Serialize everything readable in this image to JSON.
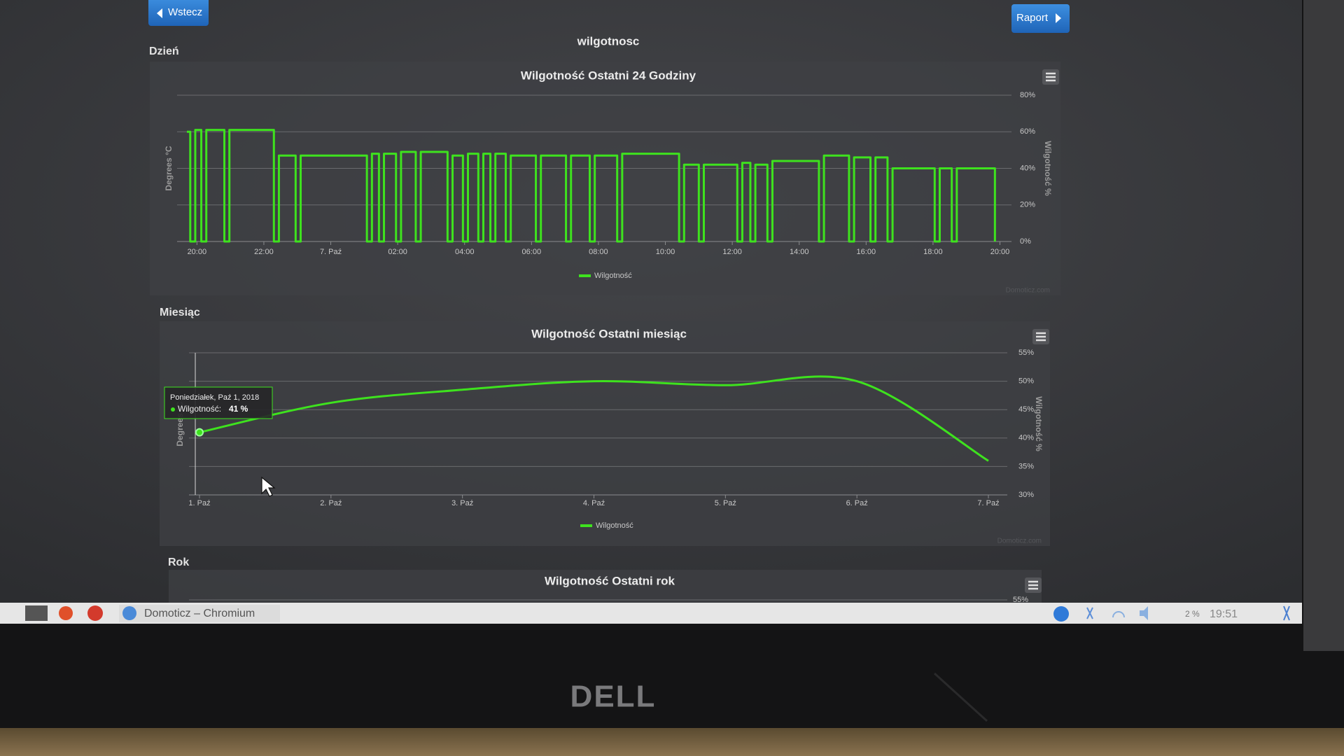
{
  "buttons": {
    "back": "Wstecz",
    "report": "Raport"
  },
  "page_title": "wilgotnosc",
  "sections": [
    "Dzień",
    "Miesiąc",
    "Rok"
  ],
  "chart_data": [
    {
      "type": "line",
      "title": "Wilgotność Ostatni 24 Godziny",
      "y_title": "Degrees °C",
      "y2_title": "Wilgotność %",
      "credits": "Domoticz.com",
      "xlim": [
        -0.3,
        24
      ],
      "xticks": [
        {
          "value": 0,
          "label": "20:00"
        },
        {
          "value": 2,
          "label": "22:00"
        },
        {
          "value": 4,
          "label": "7. Paź"
        },
        {
          "value": 6,
          "label": "02:00"
        },
        {
          "value": 8,
          "label": "04:00"
        },
        {
          "value": 10,
          "label": "06:00"
        },
        {
          "value": 12,
          "label": "08:00"
        },
        {
          "value": 14,
          "label": "10:00"
        },
        {
          "value": 16,
          "label": "12:00"
        },
        {
          "value": 18,
          "label": "14:00"
        },
        {
          "value": 20,
          "label": "16:00"
        },
        {
          "value": 22,
          "label": "18:00"
        },
        {
          "value": 24,
          "label": "20:00"
        }
      ],
      "y2lim": [
        0,
        80
      ],
      "y2ticks": [
        {
          "value": 0,
          "label": "0%"
        },
        {
          "value": 20,
          "label": "20%"
        },
        {
          "value": 40,
          "label": "40%"
        },
        {
          "value": 60,
          "label": "60%"
        },
        {
          "value": 80,
          "label": "80%"
        }
      ],
      "grid": true,
      "x": [
        -0.3,
        -0.2,
        -0.2,
        -0.05,
        -0.05,
        0.13,
        0.13,
        0.28,
        0.28,
        0.82,
        0.82,
        0.97,
        0.97,
        2.3,
        2.3,
        2.45,
        2.45,
        2.95,
        2.95,
        3.1,
        3.1,
        5.08,
        5.08,
        5.23,
        5.23,
        5.44,
        5.44,
        5.59,
        5.59,
        5.95,
        5.95,
        6.1,
        6.1,
        6.54,
        6.54,
        6.69,
        6.69,
        7.49,
        7.49,
        7.64,
        7.64,
        7.95,
        7.95,
        8.1,
        8.1,
        8.41,
        8.41,
        8.56,
        8.56,
        8.77,
        8.77,
        8.92,
        8.92,
        9.23,
        9.23,
        9.38,
        9.38,
        10.13,
        10.13,
        10.28,
        10.28,
        11.03,
        11.03,
        11.18,
        11.18,
        11.74,
        11.74,
        11.89,
        11.89,
        12.56,
        12.56,
        12.71,
        12.71,
        14.41,
        14.41,
        14.56,
        14.56,
        15.0,
        15.0,
        15.15,
        15.15,
        16.15,
        16.15,
        16.3,
        16.3,
        16.54,
        16.54,
        16.69,
        16.69,
        17.05,
        17.05,
        17.2,
        17.2,
        18.59,
        18.59,
        18.74,
        18.74,
        19.49,
        19.49,
        19.64,
        19.64,
        20.13,
        20.13,
        20.28,
        20.28,
        20.64,
        20.64,
        20.79,
        20.79,
        22.05,
        22.05,
        22.2,
        22.2,
        22.56,
        22.56,
        22.71,
        22.71,
        23.85,
        23.85
      ],
      "series": [
        {
          "name": "Wilgotność",
          "color": "#3ee21e",
          "axis": "y2",
          "values": [
            60,
            60,
            0,
            0,
            61,
            61,
            0,
            0,
            61,
            61,
            0,
            0,
            61,
            61,
            0,
            0,
            47,
            47,
            0,
            0,
            47,
            47,
            0,
            0,
            48,
            48,
            0,
            0,
            48,
            48,
            0,
            0,
            49,
            49,
            0,
            0,
            49,
            49,
            0,
            0,
            47,
            47,
            0,
            0,
            48,
            48,
            0,
            0,
            48,
            48,
            0,
            0,
            48,
            48,
            0,
            0,
            47,
            47,
            0,
            0,
            47,
            47,
            0,
            0,
            47,
            47,
            0,
            0,
            47,
            47,
            0,
            0,
            48,
            48,
            0,
            0,
            42,
            42,
            0,
            0,
            42,
            42,
            0,
            0,
            43,
            43,
            0,
            0,
            42,
            42,
            0,
            0,
            44,
            44,
            0,
            0,
            47,
            47,
            0,
            0,
            46,
            46,
            0,
            0,
            46,
            46,
            0,
            0,
            40,
            40,
            0,
            0,
            40,
            40,
            0,
            0,
            40,
            40,
            0
          ]
        }
      ]
    },
    {
      "type": "line",
      "smooth": true,
      "title": "Wilgotność Ostatni miesiąc",
      "y_title": "Degrees °C",
      "y2_title": "Wilgotność %",
      "credits": "Domoticz.com",
      "xlim": [
        1,
        7
      ],
      "xticks": [
        {
          "value": 1,
          "label": "1. Paź"
        },
        {
          "value": 2,
          "label": "2. Paź"
        },
        {
          "value": 3,
          "label": "3. Paź"
        },
        {
          "value": 4,
          "label": "4. Paź"
        },
        {
          "value": 5,
          "label": "5. Paź"
        },
        {
          "value": 6,
          "label": "6. Paź"
        },
        {
          "value": 7,
          "label": "7. Paź"
        }
      ],
      "y2lim": [
        30,
        55
      ],
      "y2ticks": [
        {
          "value": 30,
          "label": "30%"
        },
        {
          "value": 35,
          "label": "35%"
        },
        {
          "value": 40,
          "label": "40%"
        },
        {
          "value": 45,
          "label": "45%"
        },
        {
          "value": 50,
          "label": "50%"
        },
        {
          "value": 55,
          "label": "55%"
        }
      ],
      "grid": true,
      "x": [
        1,
        2,
        3,
        4,
        5,
        6,
        7
      ],
      "series": [
        {
          "name": "Wilgotność",
          "color": "#3ee21e",
          "axis": "y2",
          "values": [
            41,
            46.2,
            48.5,
            50,
            49.3,
            50,
            36
          ]
        }
      ],
      "tooltip": {
        "date": "Poniedziałek, Paź 1, 2018",
        "label": "Wilgotność:",
        "value_label": "41 %"
      }
    },
    {
      "type": "line",
      "title": "Wilgotność Ostatni rok",
      "y2ticks": [
        {
          "value": 55,
          "label": "55%"
        }
      ],
      "grid": true
    }
  ],
  "taskbar": {
    "window": "Domoticz – Chromium",
    "status": "2 %",
    "clock": "19:51"
  },
  "monitor_brand": "DELL"
}
